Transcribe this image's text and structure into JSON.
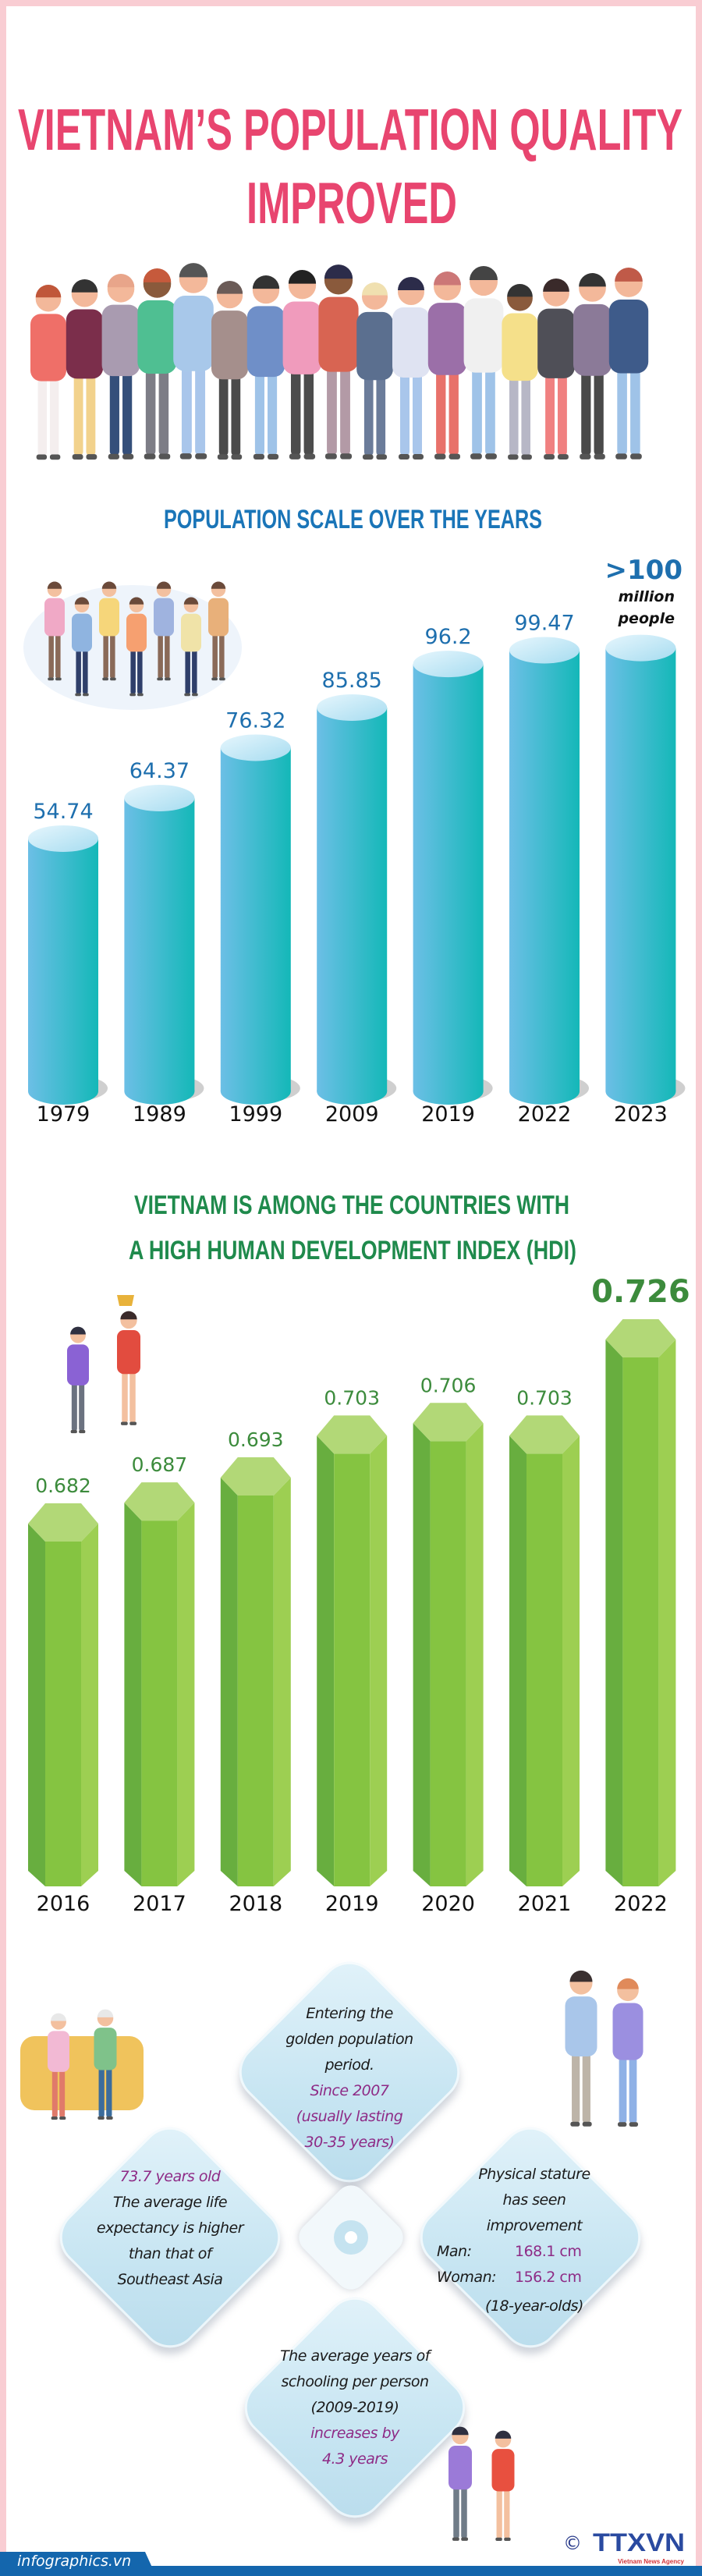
{
  "title": {
    "line1": "VIETNAM’S POPULATION QUALITY",
    "line2": "IMPROVED",
    "color": "#e8456f"
  },
  "chart_data": [
    {
      "type": "bar",
      "title": "POPULATION SCALE OVER THE YEARS",
      "categories": [
        "1979",
        "1989",
        "1999",
        "2009",
        "2019",
        "2022",
        "2023"
      ],
      "values": [
        54.74,
        64.37,
        76.32,
        85.85,
        96.2,
        99.47,
        100
      ],
      "value_labels": [
        "54.74",
        "64.37",
        "76.32",
        "85.85",
        "96.2",
        "99.47",
        ">100"
      ],
      "last_label_unit": [
        "million",
        "people"
      ],
      "style": "cylinder",
      "colors": {
        "bar_left": "#6cbfe6",
        "bar_right": "#14b8b8",
        "label": "#1e6fae"
      }
    },
    {
      "type": "bar",
      "title": [
        "VIETNAM IS AMONG THE COUNTRIES WITH",
        "A HIGH HUMAN DEVELOPMENT INDEX (HDI)"
      ],
      "categories": [
        "2016",
        "2017",
        "2018",
        "2019",
        "2020",
        "2021",
        "2022"
      ],
      "values": [
        0.682,
        0.687,
        0.693,
        0.703,
        0.706,
        0.703,
        0.726
      ],
      "value_labels": [
        "0.682",
        "0.687",
        "0.693",
        "0.703",
        "0.706",
        "0.703",
        "0.726"
      ],
      "style": "hexagonal-prism",
      "colors": {
        "bar": "#85c441",
        "label": "#3c8b3c",
        "title": "#1f8a4c"
      }
    }
  ],
  "facts": {
    "top": {
      "lines": [
        "Entering the",
        "golden population",
        "period."
      ],
      "highlight": [
        "Since 2007",
        "(usually lasting",
        "30-35 years)"
      ]
    },
    "left": {
      "highlight": [
        "73.7 years old"
      ],
      "lines": [
        "The average life",
        "expectancy is higher",
        "than that of",
        "Southeast Asia"
      ]
    },
    "right": {
      "lines": [
        "Physical stature",
        "has seen",
        "improvement"
      ],
      "man_label": "Man:",
      "man_value": "168.1 cm",
      "woman_label": "Woman:",
      "woman_value": "156.2 cm",
      "note": "(18-year-olds)"
    },
    "bottom": {
      "lines": [
        "The average years of",
        "schooling per person",
        "(2009-2019)"
      ],
      "highlight": [
        "increases by",
        "4.3 years"
      ]
    }
  },
  "footer": {
    "site": "infographics.vn",
    "copyright": "©",
    "logo_text": "TTXVN",
    "logo_sub": "Vietnam News Agency"
  }
}
